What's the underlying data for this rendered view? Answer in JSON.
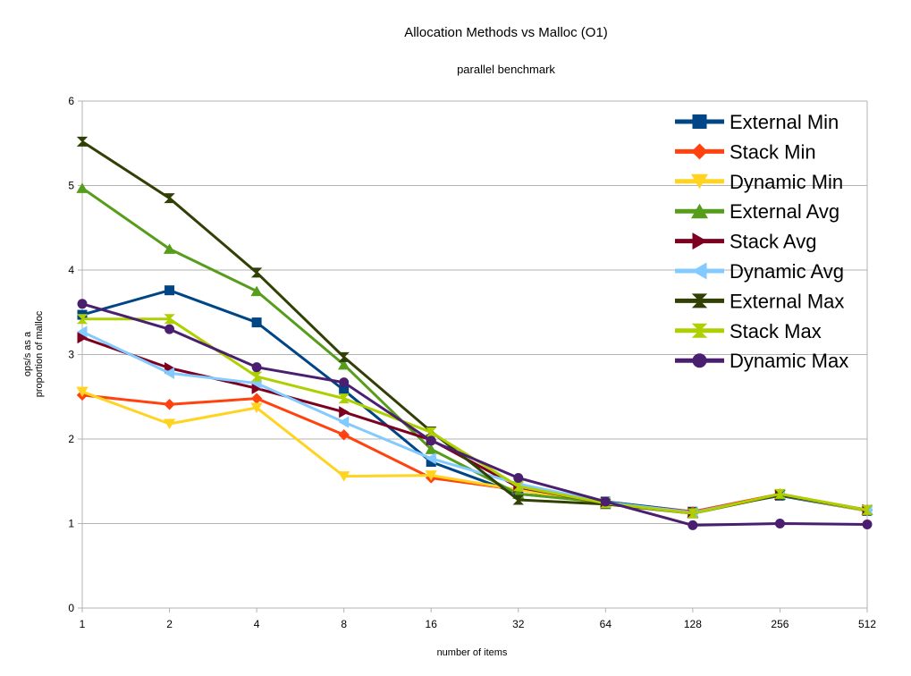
{
  "chart_data": {
    "type": "line",
    "title": "Allocation Methods vs Malloc (O1)",
    "subtitle": "parallel benchmark",
    "xlabel": "number of items",
    "ylabel_lines": [
      "ops/s as a",
      "proportion of malloc"
    ],
    "categories": [
      "1",
      "2",
      "4",
      "8",
      "16",
      "32",
      "64",
      "128",
      "256",
      "512"
    ],
    "ylim": [
      0,
      6
    ],
    "yticks": [
      "0",
      "1",
      "2",
      "3",
      "4",
      "5",
      "6"
    ],
    "grid": "horizontal",
    "legend_position": "top-right",
    "series": [
      {
        "name": "External Min",
        "color": "#004586",
        "marker": "square",
        "values": [
          3.47,
          3.76,
          3.38,
          2.58,
          1.73,
          1.35,
          1.26,
          1.14,
          1.33,
          1.15
        ]
      },
      {
        "name": "Stack Min",
        "color": "#ff420e",
        "marker": "diamond",
        "values": [
          2.52,
          2.41,
          2.48,
          2.05,
          1.54,
          1.4,
          1.24,
          1.14,
          1.35,
          1.16
        ]
      },
      {
        "name": "Dynamic Min",
        "color": "#ffd320",
        "marker": "triangle-down",
        "values": [
          2.56,
          2.18,
          2.37,
          1.56,
          1.57,
          1.4,
          1.23,
          1.12,
          1.34,
          1.15
        ]
      },
      {
        "name": "External Avg",
        "color": "#579d1c",
        "marker": "triangle-up",
        "values": [
          4.97,
          4.25,
          3.75,
          2.88,
          1.88,
          1.35,
          1.25,
          1.13,
          1.34,
          1.16
        ]
      },
      {
        "name": "Stack Avg",
        "color": "#7e0021",
        "marker": "triangle-right",
        "values": [
          3.2,
          2.84,
          2.6,
          2.32,
          1.99,
          1.43,
          1.24,
          1.13,
          1.34,
          1.16
        ]
      },
      {
        "name": "Dynamic Avg",
        "color": "#83caff",
        "marker": "triangle-left",
        "values": [
          3.27,
          2.78,
          2.66,
          2.2,
          1.77,
          1.47,
          1.25,
          1.13,
          1.34,
          1.16
        ]
      },
      {
        "name": "External Max",
        "color": "#314004",
        "marker": "bowtie",
        "values": [
          5.52,
          4.85,
          3.97,
          2.97,
          2.09,
          1.28,
          1.23,
          1.12,
          1.34,
          1.16
        ]
      },
      {
        "name": "Stack Max",
        "color": "#aecf00",
        "marker": "hourglass",
        "values": [
          3.42,
          3.42,
          2.74,
          2.48,
          2.08,
          1.44,
          1.24,
          1.12,
          1.35,
          1.16
        ]
      },
      {
        "name": "Dynamic Max",
        "color": "#4b1f6f",
        "marker": "circle",
        "values": [
          3.6,
          3.3,
          2.85,
          2.67,
          1.98,
          1.54,
          1.26,
          0.98,
          1.0,
          0.99
        ]
      }
    ]
  }
}
